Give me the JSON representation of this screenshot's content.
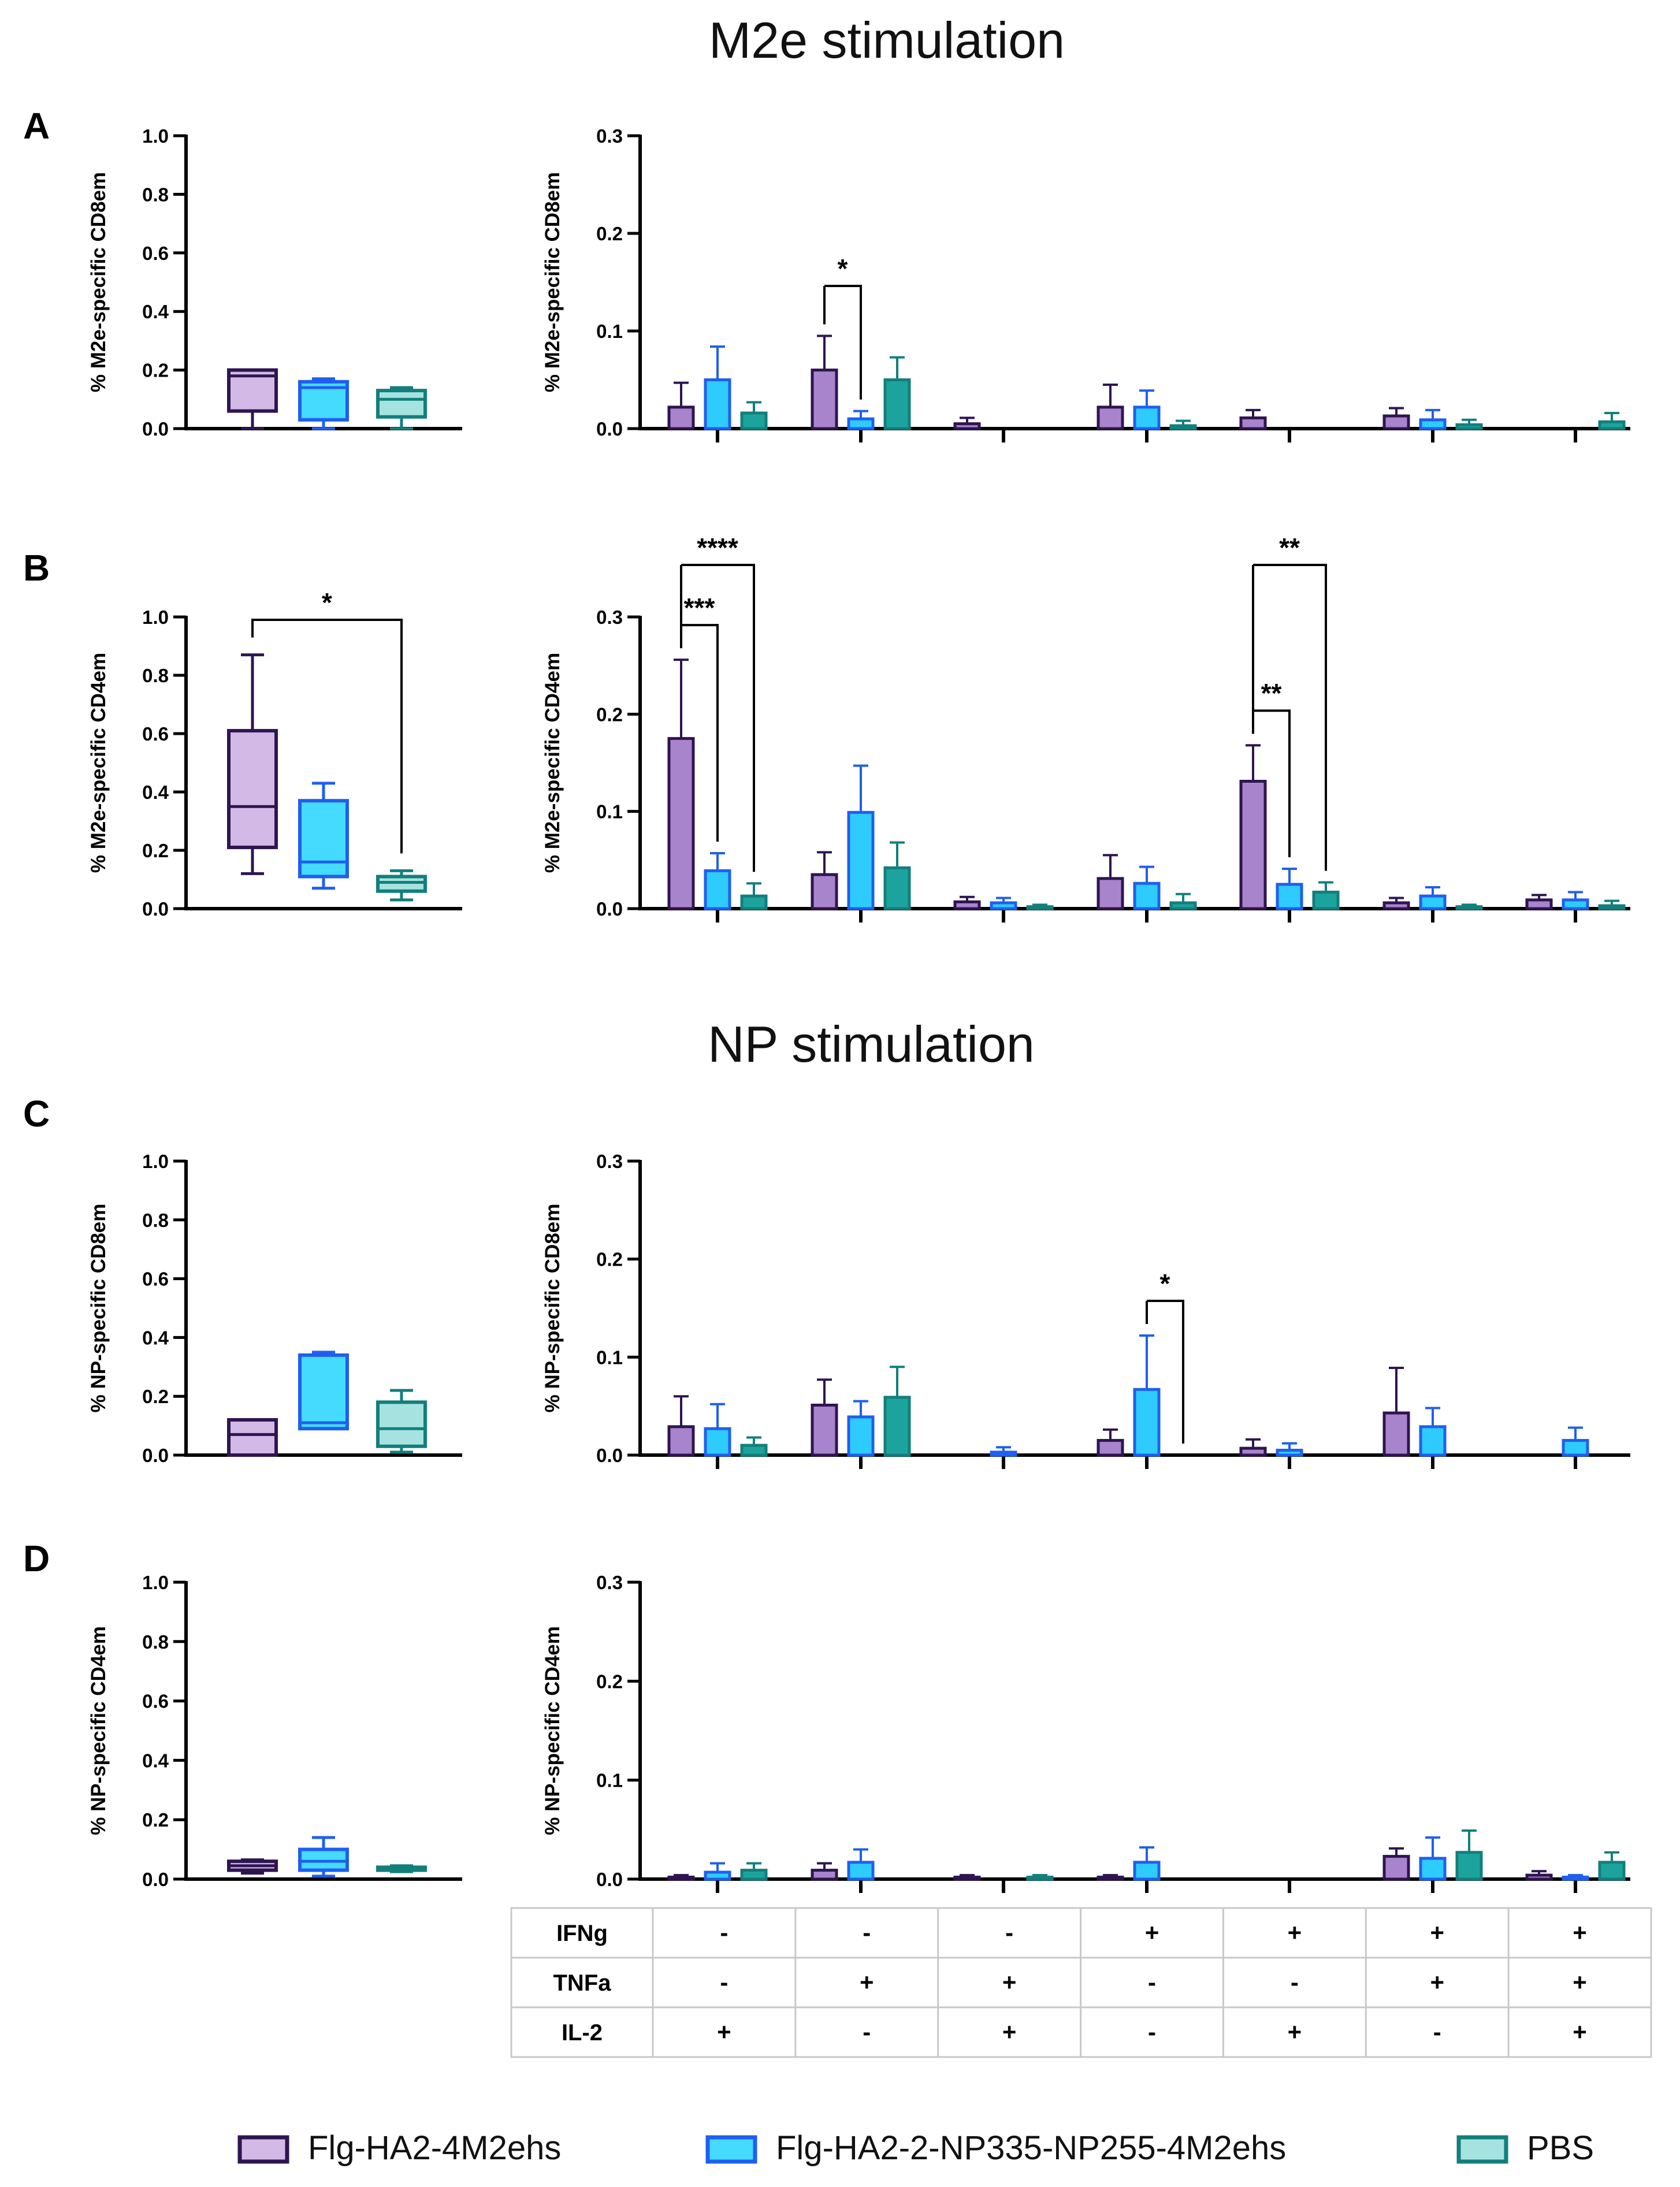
{
  "figure": {
    "section_titles": [
      "M2e stimulation",
      "NP stimulation"
    ],
    "colors": {
      "g1": {
        "fill": "#d2b9e6",
        "stroke": "#2e1550",
        "bar_fill": "#a884cc"
      },
      "g2": {
        "fill": "#45daff",
        "stroke": "#1f5ff0",
        "bar_fill": "#2ecbff"
      },
      "g3": {
        "fill": "#a6e3e0",
        "stroke": "#127f7c",
        "bar_fill": "#1ca39d"
      }
    },
    "legend": [
      {
        "label": "Flg-HA2-4M2ehs",
        "series": "g1"
      },
      {
        "label": "Flg-HA2-2-NP335-NP255-4M2ehs",
        "series": "g2"
      },
      {
        "label": "PBS",
        "series": "g3"
      }
    ],
    "combo_table": {
      "rows": [
        {
          "label": "IFNg",
          "values": [
            "-",
            "-",
            "-",
            "+",
            "+",
            "+",
            "+"
          ]
        },
        {
          "label": "TNFa",
          "values": [
            "-",
            "+",
            "+",
            "-",
            "-",
            "+",
            "+"
          ]
        },
        {
          "label": "IL-2",
          "values": [
            "+",
            "-",
            "+",
            "-",
            "+",
            "-",
            "+"
          ]
        }
      ]
    }
  },
  "chart_data": [
    {
      "panel": "A",
      "type": "box",
      "ylabel": "% M2e-specific CD8em",
      "ylim": [
        0,
        1.0
      ],
      "yticks": [
        "0.0",
        "0.2",
        "0.4",
        "0.6",
        "0.8",
        "1.0"
      ],
      "series": [
        {
          "group": "g1",
          "min": 0.0,
          "q1": 0.06,
          "median": 0.18,
          "q3": 0.2,
          "max": 0.2
        },
        {
          "group": "g2",
          "min": 0.0,
          "q1": 0.03,
          "median": 0.14,
          "q3": 0.16,
          "max": 0.17
        },
        {
          "group": "g3",
          "min": 0.0,
          "q1": 0.04,
          "median": 0.1,
          "q3": 0.13,
          "max": 0.14
        }
      ],
      "significance": []
    },
    {
      "panel": "A",
      "type": "bar",
      "ylabel": "% M2e-specific CD8em",
      "ylim": [
        0,
        0.3
      ],
      "yticks": [
        "0.0",
        "0.1",
        "0.2",
        "0.3"
      ],
      "series": [
        {
          "name": "Flg-HA2-4M2ehs",
          "group": "g1",
          "values": [
            0.022,
            0.06,
            0.005,
            0.022,
            0.011,
            0.013,
            0.0
          ],
          "errors": [
            0.025,
            0.035,
            0.006,
            0.023,
            0.008,
            0.008,
            0.0
          ]
        },
        {
          "name": "Flg-HA2-2-NP335-NP255-4M2ehs",
          "group": "g2",
          "values": [
            0.05,
            0.01,
            0.0,
            0.022,
            0.0,
            0.009,
            0.0
          ],
          "errors": [
            0.034,
            0.008,
            0.0,
            0.017,
            0.0,
            0.01,
            0.0
          ]
        },
        {
          "name": "PBS",
          "group": "g3",
          "values": [
            0.016,
            0.05,
            0.0,
            0.003,
            0.0,
            0.004,
            0.007
          ],
          "errors": [
            0.011,
            0.023,
            0.0,
            0.005,
            0.0,
            0.005,
            0.009
          ]
        }
      ],
      "significance": [
        {
          "category": 1,
          "from": "g1",
          "to": "g2",
          "label": "*",
          "level": 0
        }
      ]
    },
    {
      "panel": "B",
      "type": "box",
      "ylabel": "% M2e-specific CD4em",
      "ylim": [
        0,
        1.0
      ],
      "yticks": [
        "0.0",
        "0.2",
        "0.4",
        "0.6",
        "0.8",
        "1.0"
      ],
      "series": [
        {
          "group": "g1",
          "min": 0.12,
          "q1": 0.21,
          "median": 0.35,
          "q3": 0.61,
          "max": 0.87
        },
        {
          "group": "g2",
          "min": 0.07,
          "q1": 0.11,
          "median": 0.16,
          "q3": 0.37,
          "max": 0.43
        },
        {
          "group": "g3",
          "min": 0.03,
          "q1": 0.06,
          "median": 0.09,
          "q3": 0.11,
          "max": 0.13
        }
      ],
      "significance": [
        {
          "from": "g1",
          "to": "g3",
          "label": "*",
          "level": 0
        }
      ]
    },
    {
      "panel": "B",
      "type": "bar",
      "ylabel": "% M2e-specific CD4em",
      "ylim": [
        0,
        0.3
      ],
      "yticks": [
        "0.0",
        "0.1",
        "0.2",
        "0.3"
      ],
      "series": [
        {
          "name": "Flg-HA2-4M2ehs",
          "group": "g1",
          "values": [
            0.175,
            0.035,
            0.007,
            0.031,
            0.131,
            0.006,
            0.009
          ],
          "errors": [
            0.081,
            0.023,
            0.005,
            0.024,
            0.037,
            0.005,
            0.005
          ]
        },
        {
          "name": "Flg-HA2-2-NP335-NP255-4M2ehs",
          "group": "g2",
          "values": [
            0.039,
            0.099,
            0.006,
            0.026,
            0.025,
            0.013,
            0.009
          ],
          "errors": [
            0.018,
            0.048,
            0.005,
            0.017,
            0.016,
            0.009,
            0.008
          ]
        },
        {
          "name": "PBS",
          "group": "g3",
          "values": [
            0.013,
            0.042,
            0.002,
            0.006,
            0.017,
            0.002,
            0.003
          ],
          "errors": [
            0.013,
            0.026,
            0.002,
            0.009,
            0.01,
            0.002,
            0.005
          ]
        }
      ],
      "significance": [
        {
          "category": 0,
          "from": "g1",
          "to": "g2",
          "label": "***",
          "level": 0
        },
        {
          "category": 0,
          "from": "g1",
          "to": "g3",
          "label": "****",
          "level": 1
        },
        {
          "category": 4,
          "from": "g1",
          "to": "g2",
          "label": "**",
          "level": 0
        },
        {
          "category": 4,
          "from": "g1",
          "to": "g3",
          "label": "**",
          "level": 1
        }
      ]
    },
    {
      "panel": "C",
      "type": "box",
      "ylabel": "% NP-specific CD8em",
      "ylim": [
        0,
        1.0
      ],
      "yticks": [
        "0.0",
        "0.2",
        "0.4",
        "0.6",
        "0.8",
        "1.0"
      ],
      "series": [
        {
          "group": "g1",
          "min": 0.0,
          "q1": 0.0,
          "median": 0.07,
          "q3": 0.12,
          "max": 0.12
        },
        {
          "group": "g2",
          "min": 0.09,
          "q1": 0.09,
          "median": 0.11,
          "q3": 0.34,
          "max": 0.35
        },
        {
          "group": "g3",
          "min": 0.01,
          "q1": 0.03,
          "median": 0.09,
          "q3": 0.18,
          "max": 0.22
        }
      ],
      "significance": []
    },
    {
      "panel": "C",
      "type": "bar",
      "ylabel": "% NP-specific CD8em",
      "ylim": [
        0,
        0.3
      ],
      "yticks": [
        "0.0",
        "0.1",
        "0.2",
        "0.3"
      ],
      "series": [
        {
          "name": "Flg-HA2-4M2ehs",
          "group": "g1",
          "values": [
            0.029,
            0.051,
            0.0,
            0.015,
            0.007,
            0.043,
            0.0
          ],
          "errors": [
            0.031,
            0.026,
            0.0,
            0.011,
            0.009,
            0.046,
            0.0
          ]
        },
        {
          "name": "Flg-HA2-2-NP335-NP255-4M2ehs",
          "group": "g2",
          "values": [
            0.027,
            0.039,
            0.003,
            0.067,
            0.005,
            0.029,
            0.015
          ],
          "errors": [
            0.025,
            0.016,
            0.005,
            0.055,
            0.007,
            0.019,
            0.013
          ]
        },
        {
          "name": "PBS",
          "group": "g3",
          "values": [
            0.01,
            0.059,
            0.0,
            0.0,
            0.0,
            0.0,
            0.0
          ],
          "errors": [
            0.008,
            0.031,
            0.0,
            0.0,
            0.0,
            0.0,
            0.0
          ]
        }
      ],
      "significance": [
        {
          "category": 3,
          "from": "g2",
          "to": "g3",
          "label": "*",
          "level": 0
        }
      ]
    },
    {
      "panel": "D",
      "type": "box",
      "ylabel": "% NP-specific CD4em",
      "ylim": [
        0,
        1.0
      ],
      "yticks": [
        "0.0",
        "0.2",
        "0.4",
        "0.6",
        "0.8",
        "1.0"
      ],
      "series": [
        {
          "group": "g1",
          "min": 0.02,
          "q1": 0.03,
          "median": 0.045,
          "q3": 0.06,
          "max": 0.065
        },
        {
          "group": "g2",
          "min": 0.01,
          "q1": 0.03,
          "median": 0.06,
          "q3": 0.1,
          "max": 0.14
        },
        {
          "group": "g3",
          "min": 0.025,
          "q1": 0.03,
          "median": 0.035,
          "q3": 0.04,
          "max": 0.045
        }
      ],
      "significance": []
    },
    {
      "panel": "D",
      "type": "bar",
      "ylabel": "% NP-specific CD4em",
      "ylim": [
        0,
        0.3
      ],
      "yticks": [
        "0.0",
        "0.1",
        "0.2",
        "0.3"
      ],
      "series": [
        {
          "name": "Flg-HA2-4M2ehs",
          "group": "g1",
          "values": [
            0.002,
            0.009,
            0.002,
            0.002,
            0.0,
            0.023,
            0.004
          ],
          "errors": [
            0.002,
            0.007,
            0.002,
            0.002,
            0.0,
            0.008,
            0.004
          ]
        },
        {
          "name": "Flg-HA2-2-NP335-NP255-4M2ehs",
          "group": "g2",
          "values": [
            0.007,
            0.017,
            0.0,
            0.017,
            0.0,
            0.021,
            0.002
          ],
          "errors": [
            0.009,
            0.013,
            0.0,
            0.015,
            0.0,
            0.021,
            0.002
          ]
        },
        {
          "name": "PBS",
          "group": "g3",
          "values": [
            0.009,
            0.0,
            0.002,
            0.0,
            0.0,
            0.027,
            0.017
          ],
          "errors": [
            0.007,
            0.0,
            0.002,
            0.0,
            0.0,
            0.022,
            0.01
          ]
        }
      ],
      "significance": []
    }
  ]
}
